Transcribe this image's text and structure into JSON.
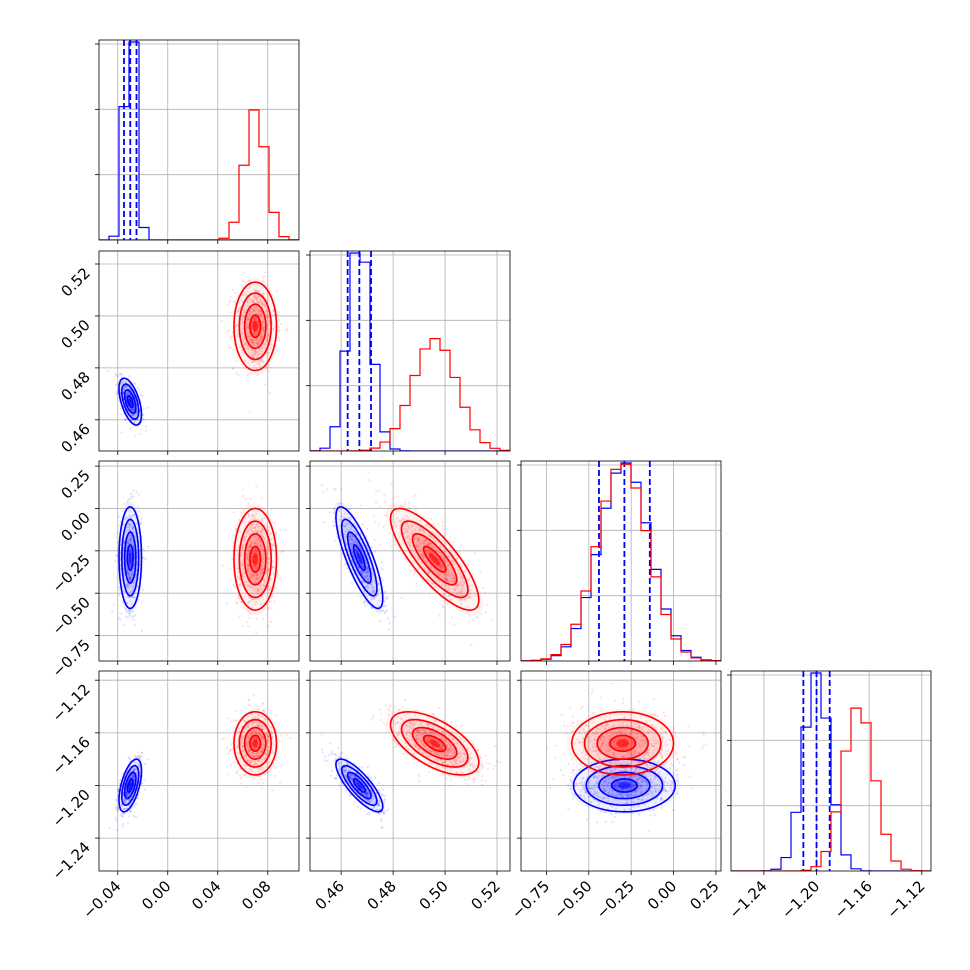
{
  "chart_data": {
    "type": "corner",
    "grid": true,
    "dims": 4,
    "series": [
      {
        "color": "#0000ff",
        "means": [
          -0.03,
          0.467,
          -0.29,
          -1.2
        ],
        "sds": [
          0.0045,
          0.0045,
          0.15,
          0.01
        ],
        "correlations": {
          "1-0": -0.55,
          "2-0": 0.0,
          "2-1": -0.8,
          "3-0": 0.55,
          "3-1": -0.8,
          "3-2": 0.0
        },
        "quantiles": [
          [
            -0.035,
            -0.03,
            -0.025
          ],
          [
            0.4625,
            0.467,
            0.4715
          ],
          [
            -0.44,
            -0.29,
            -0.14
          ],
          [
            -1.21,
            -1.2,
            -1.19
          ]
        ]
      },
      {
        "color": "#ff0000",
        "means": [
          0.07,
          0.496,
          -0.3,
          -1.168
        ],
        "sds": [
          0.0085,
          0.0085,
          0.15,
          0.012
        ],
        "correlations": {
          "1-0": 0.0,
          "2-0": 0.0,
          "2-1": -0.8,
          "3-0": 0.0,
          "3-1": -0.6,
          "3-2": 0.0
        },
        "quantiles": []
      }
    ],
    "axes": [
      {
        "range": [
          -0.055,
          0.105
        ],
        "ticks": [
          -0.04,
          0.0,
          0.04,
          0.08
        ],
        "tick_labels": [
          "−0.04",
          "0.00",
          "0.04",
          "0.08"
        ]
      },
      {
        "range": [
          0.448,
          0.525
        ],
        "ticks": [
          0.46,
          0.48,
          0.5,
          0.52
        ],
        "tick_labels": [
          "0.46",
          "0.48",
          "0.50",
          "0.52"
        ]
      },
      {
        "range": [
          -0.9,
          0.28
        ],
        "ticks": [
          -0.75,
          -0.5,
          -0.25,
          0.0,
          0.25
        ],
        "tick_labels": [
          "−0.75",
          "−0.50",
          "−0.25",
          "0.00",
          "0.25"
        ]
      },
      {
        "range": [
          -1.265,
          -1.113
        ],
        "ticks": [
          -1.24,
          -1.2,
          -1.16,
          -1.12
        ],
        "tick_labels": [
          "−1.24",
          "−1.20",
          "−1.16",
          "−1.12"
        ]
      }
    ]
  }
}
